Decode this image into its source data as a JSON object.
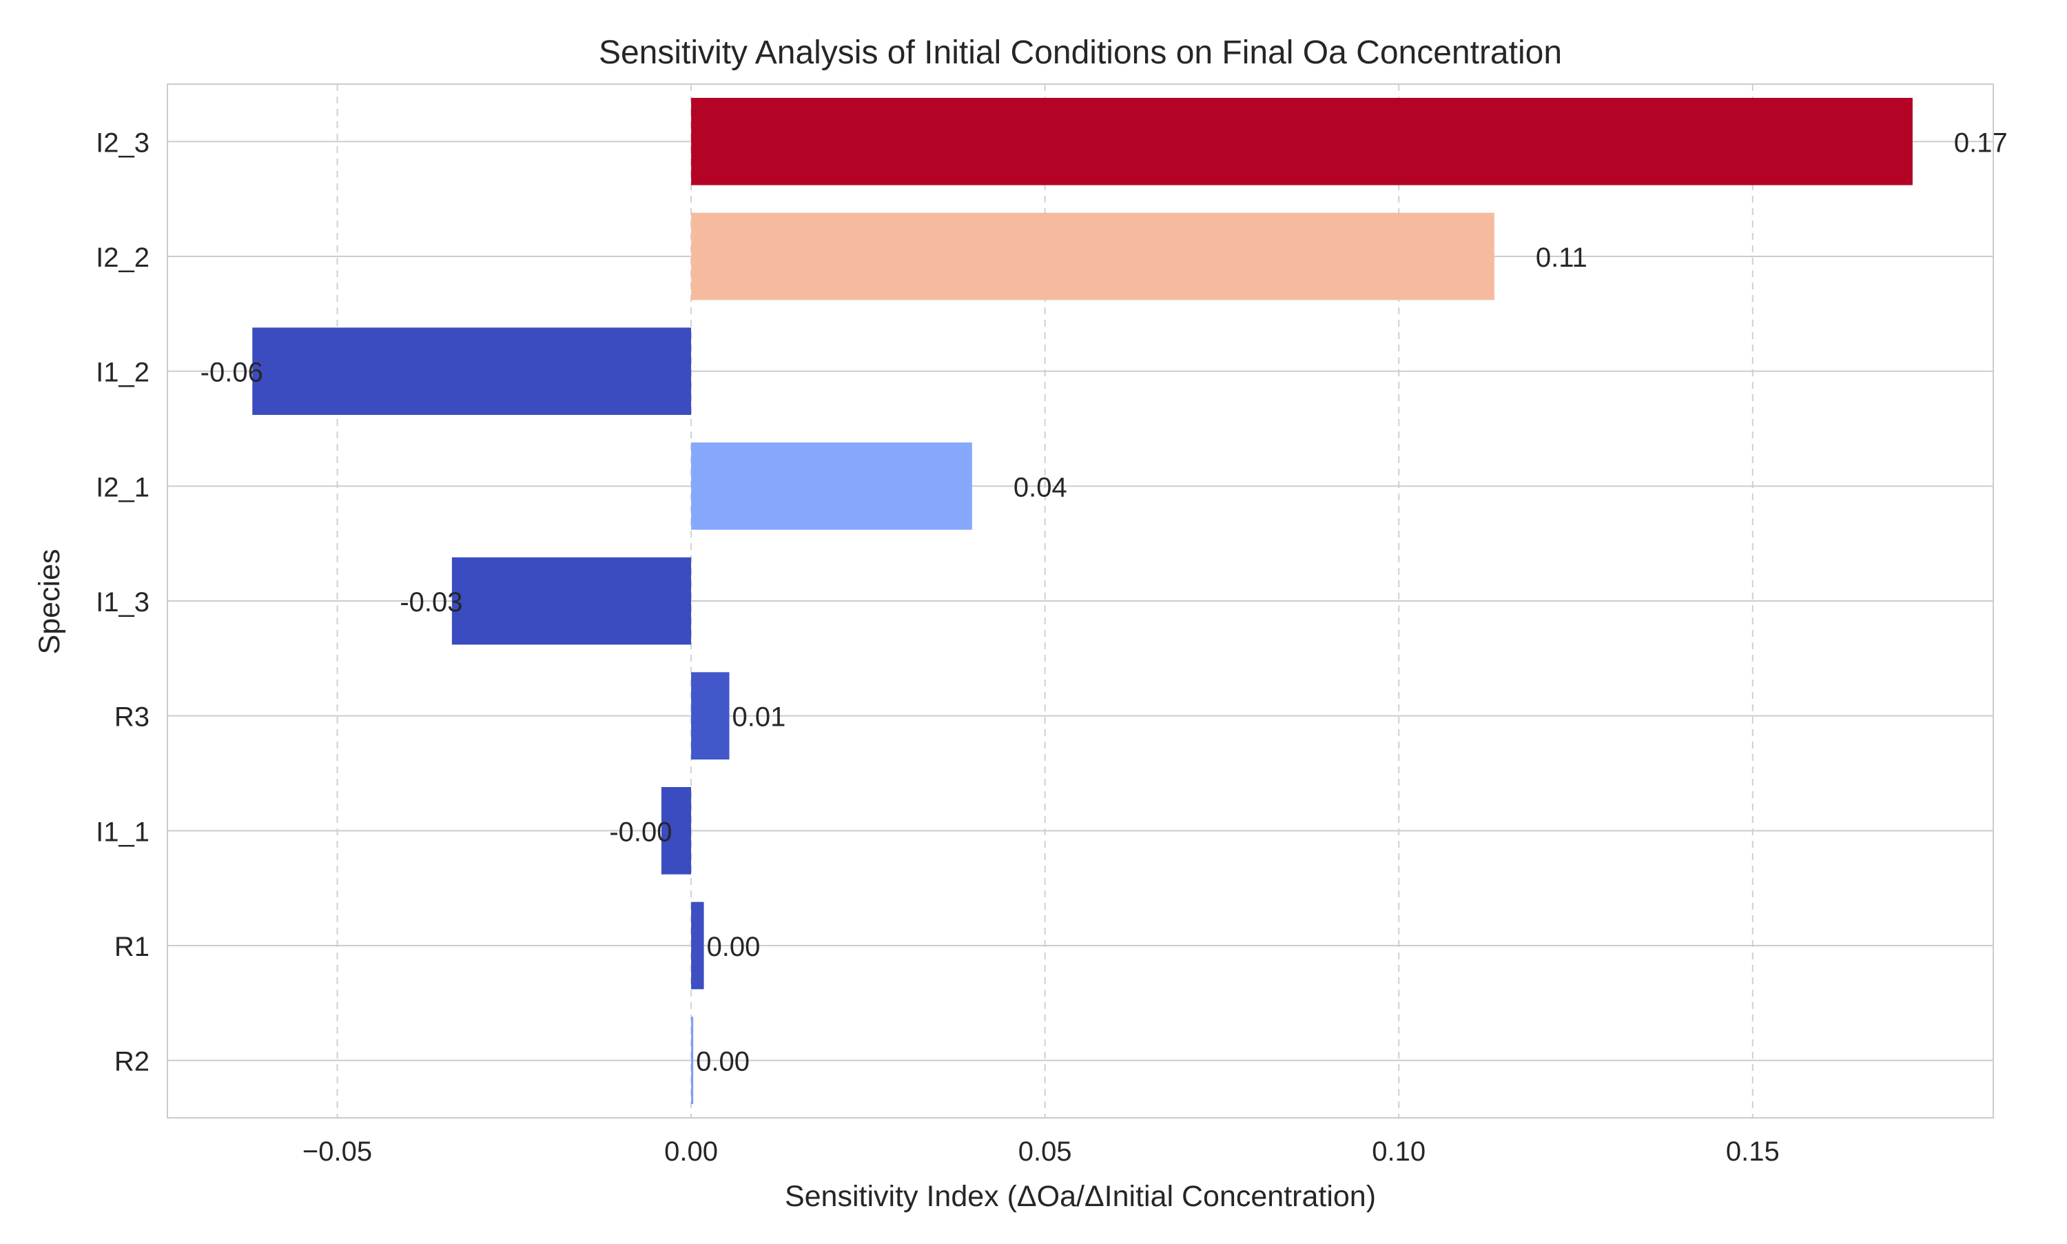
{
  "chart_data": {
    "type": "bar",
    "orientation": "horizontal",
    "title": "Sensitivity Analysis of Initial Conditions on Final Oa Concentration",
    "xlabel": "Sensitivity Index (ΔOa/ΔInitial Concentration)",
    "ylabel": "Species",
    "xlim": [
      -0.074,
      0.184
    ],
    "grid": true,
    "categories": [
      "I2_3",
      "I2_2",
      "I1_2",
      "I2_1",
      "I1_3",
      "R3",
      "I1_1",
      "R1",
      "R2"
    ],
    "values": [
      0.1726,
      0.1135,
      -0.062,
      0.0397,
      -0.0338,
      0.0054,
      -0.0042,
      0.0018,
      0.0003
    ],
    "data_labels": [
      "0.17",
      "0.11",
      "-0.06",
      "0.04",
      "-0.03",
      "0.01",
      "-0.00",
      "0.00",
      "0.00"
    ],
    "colors": [
      "#b40426",
      "#f6bb9f",
      "#3b4cc0",
      "#86a8fc",
      "#3b4cc0",
      "#4257c9",
      "#3b4cc0",
      "#3d4fc2",
      "#7b9ef5"
    ],
    "xticks": [
      -0.05,
      0.0,
      0.05,
      0.1,
      0.15
    ],
    "xtick_labels": [
      "−0.05",
      "0.00",
      "0.05",
      "0.10",
      "0.15"
    ]
  }
}
